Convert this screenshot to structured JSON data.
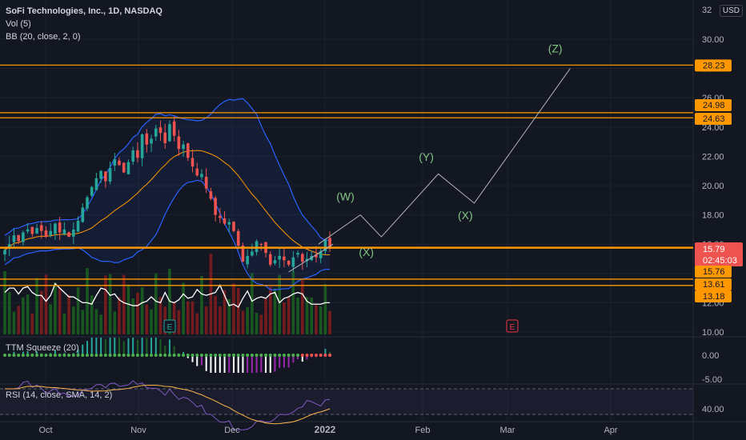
{
  "header": {
    "title": "SoFi Technologies, Inc., 1D, NASDAQ",
    "vol": "Vol (5)",
    "bb": "BB (20, close, 2, 0)",
    "currency": "USD",
    "cut_tick": "32"
  },
  "panes": {
    "squeeze_label": "TTM Squeeze (20)",
    "rsi_label": "RSI (14, close, SMA, 14, 2)"
  },
  "colors": {
    "background": "#131722",
    "up": "#26a69a",
    "down": "#ef5350",
    "bb_band": "#2962ff",
    "bb_basis": "#ff9800",
    "level": "#ff9800",
    "wave": "#b2b5be",
    "wave_label": "#81c784",
    "rsi": "#7e57c2"
  },
  "chart_data": {
    "type": "candlestick",
    "symbol": "SoFi Technologies, Inc.",
    "interval": "1D",
    "exchange": "NASDAQ",
    "x_ticks": [
      "Oct",
      "Nov",
      "Dec",
      "2022",
      "Feb",
      "Mar",
      "Apr"
    ],
    "y_ticks": [
      "30.00",
      "28.00",
      "26.00",
      "24.00",
      "22.00",
      "20.00",
      "18.00",
      "16.00",
      "14.00",
      "12.00",
      "10.00"
    ],
    "y_range": [
      9.5,
      32.5
    ],
    "price_labels": [
      {
        "value": 28.23,
        "text": "28.23",
        "style": "level"
      },
      {
        "value": 24.98,
        "text": "24.98",
        "style": "level"
      },
      {
        "value": 24.63,
        "text": "24.63",
        "style": "level"
      },
      {
        "value": 15.79,
        "text": "15.79",
        "style": "last"
      },
      {
        "value": 15.76,
        "text": "15.76",
        "style": "level"
      },
      {
        "value": 13.61,
        "text": "13.61",
        "style": "level"
      },
      {
        "value": 13.18,
        "text": "13.18",
        "style": "level"
      }
    ],
    "last_price": 15.79,
    "countdown": "02:45:03",
    "horizontal_levels": [
      28.23,
      24.98,
      24.63,
      15.76,
      13.61,
      13.18
    ],
    "closes": [
      15.6,
      16.0,
      16.6,
      16.2,
      16.8,
      17.0,
      16.7,
      17.1,
      16.9,
      16.5,
      16.9,
      17.4,
      16.8,
      17.0,
      16.5,
      17.0,
      17.6,
      18.5,
      19.2,
      19.9,
      20.5,
      21.0,
      20.3,
      21.2,
      21.8,
      21.4,
      20.9,
      21.6,
      22.4,
      21.9,
      23.5,
      22.8,
      23.2,
      23.9,
      23.6,
      22.9,
      24.2,
      23.4,
      22.5,
      22.8,
      21.9,
      21.3,
      20.7,
      20.8,
      19.8,
      19.1,
      18.0,
      17.8,
      17.4,
      17.5,
      16.9,
      15.9,
      14.8,
      15.2,
      15.5,
      16.2,
      16.0,
      15.4,
      14.6,
      14.9,
      15.2,
      14.9,
      14.6,
      15.1,
      15.4,
      14.8,
      15.0,
      15.2,
      15.1,
      15.5,
      16.3,
      15.79
    ],
    "volume_ma": [
      12.7,
      13.0,
      13.0,
      12.6,
      13.0,
      13.1,
      12.7,
      12.5,
      12.5,
      12.1,
      12.5,
      13.3,
      13.0,
      12.7,
      12.4,
      12.4,
      12.2,
      12.0,
      12.0,
      11.9,
      12.5,
      13.0,
      12.9,
      12.5,
      12.6,
      12.2,
      12.0,
      11.9,
      11.8,
      11.8,
      12.0,
      12.1,
      12.4,
      12.1,
      12.0,
      12.7,
      12.1,
      12.0,
      12.2,
      12.6,
      12.3,
      12.4,
      12.9,
      12.6,
      12.5,
      12.6,
      12.7,
      13.2,
      12.5,
      11.8,
      11.9,
      11.7,
      12.3,
      12.8,
      12.1,
      12.3,
      12.4,
      12.3,
      12.6,
      12.7,
      12.0,
      12.3,
      12.4,
      12.6,
      12.7,
      12.6,
      12.1,
      11.9,
      11.9,
      11.9,
      12.0,
      12.0
    ],
    "earnings_markers": [
      {
        "label": "E",
        "at": "Nov"
      },
      {
        "label": "E",
        "at": "Mar"
      }
    ],
    "wave_path": [
      {
        "date": "2021-12-31",
        "price": 16.0
      },
      {
        "date": "2022-01-14",
        "price": 18.0
      },
      {
        "date": "2022-01-21",
        "price": 16.5
      },
      {
        "date": "2022-02-09",
        "price": 20.8
      },
      {
        "date": "2022-02-21",
        "price": 18.8
      },
      {
        "date": "2022-03-25",
        "price": 28.0
      }
    ],
    "wave_labels": [
      {
        "text": "(W)",
        "date": "2022-01-09",
        "price": 19.0
      },
      {
        "text": "(X)",
        "date": "2022-01-16",
        "price": 15.2
      },
      {
        "text": "(Y)",
        "date": "2022-02-05",
        "price": 21.7
      },
      {
        "text": "(X)",
        "date": "2022-02-18",
        "price": 17.7
      },
      {
        "text": "(Z)",
        "date": "2022-03-20",
        "price": 29.1
      }
    ],
    "squeeze": {
      "y_ticks": [
        "0.00",
        "-5.00"
      ]
    },
    "rsi": {
      "y_ticks": [
        "40.00"
      ]
    }
  }
}
